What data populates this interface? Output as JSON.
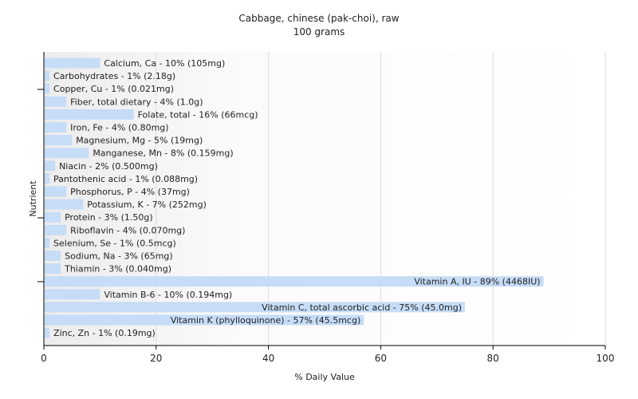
{
  "chart_data": {
    "type": "bar",
    "orientation": "horizontal",
    "title": "Cabbage, chinese (pak-choi), raw",
    "subtitle": "100 grams",
    "xlabel": "% Daily Value",
    "ylabel": "Nutrient",
    "xlim": [
      0,
      100
    ],
    "x_ticks": [
      0,
      20,
      40,
      60,
      80,
      100
    ],
    "grid": true,
    "bar_color": "#c6dcf7",
    "categories": [
      "Calcium, Ca",
      "Carbohydrates",
      "Copper, Cu",
      "Fiber, total dietary",
      "Folate, total",
      "Iron, Fe",
      "Magnesium, Mg",
      "Manganese, Mn",
      "Niacin",
      "Pantothenic acid",
      "Phosphorus, P",
      "Potassium, K",
      "Protein",
      "Riboflavin",
      "Selenium, Se",
      "Sodium, Na",
      "Thiamin",
      "Vitamin A, IU",
      "Vitamin B-6",
      "Vitamin C, total ascorbic acid",
      "Vitamin K (phylloquinone)",
      "Zinc, Zn"
    ],
    "values": [
      10,
      1,
      1,
      4,
      16,
      4,
      5,
      8,
      2,
      1,
      4,
      7,
      3,
      4,
      1,
      3,
      3,
      89,
      10,
      75,
      57,
      1
    ],
    "labels": [
      "Calcium, Ca - 10% (105mg)",
      "Carbohydrates - 1% (2.18g)",
      "Copper, Cu - 1% (0.021mg)",
      "Fiber, total dietary - 4% (1.0g)",
      "Folate, total - 16% (66mcg)",
      "Iron, Fe - 4% (0.80mg)",
      "Magnesium, Mg - 5% (19mg)",
      "Manganese, Mn - 8% (0.159mg)",
      "Niacin - 2% (0.500mg)",
      "Pantothenic acid - 1% (0.088mg)",
      "Phosphorus, P - 4% (37mg)",
      "Potassium, K - 7% (252mg)",
      "Protein - 3% (1.50g)",
      "Riboflavin - 4% (0.070mg)",
      "Selenium, Se - 1% (0.5mcg)",
      "Sodium, Na - 3% (65mg)",
      "Thiamin - 3% (0.040mg)",
      "Vitamin A, IU - 89% (4468IU)",
      "Vitamin B-6 - 10% (0.194mg)",
      "Vitamin C, total ascorbic acid - 75% (45.0mg)",
      "Vitamin K (phylloquinone) - 57% (45.5mcg)",
      "Zinc, Zn - 1% (0.19mg)"
    ]
  }
}
